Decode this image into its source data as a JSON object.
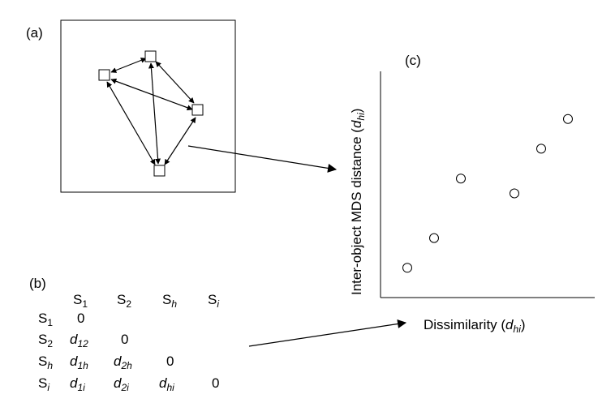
{
  "panel_a": {
    "label": "(a)"
  },
  "panel_b": {
    "label": "(b)",
    "headers": [
      {
        "base": "S",
        "sub": "1",
        "sub_italic": false
      },
      {
        "base": "S",
        "sub": "2",
        "sub_italic": false
      },
      {
        "base": "S",
        "sub": "h",
        "sub_italic": true
      },
      {
        "base": "S",
        "sub": "i",
        "sub_italic": true
      }
    ],
    "rows": [
      {
        "label": {
          "base": "S",
          "sub": "1",
          "sub_italic": false
        },
        "cells": [
          {
            "base": "0",
            "sub": "",
            "italic": false
          }
        ]
      },
      {
        "label": {
          "base": "S",
          "sub": "2",
          "sub_italic": false
        },
        "cells": [
          {
            "base": "d",
            "sub": "12",
            "italic": true
          },
          {
            "base": "0",
            "sub": "",
            "italic": false
          }
        ]
      },
      {
        "label": {
          "base": "S",
          "sub": "h",
          "sub_italic": true
        },
        "cells": [
          {
            "base": "d",
            "sub": "1h",
            "italic": true
          },
          {
            "base": "d",
            "sub": "2h",
            "italic": true
          },
          {
            "base": "0",
            "sub": "",
            "italic": false
          }
        ]
      },
      {
        "label": {
          "base": "S",
          "sub": "i",
          "sub_italic": true
        },
        "cells": [
          {
            "base": "d",
            "sub": "1i",
            "italic": true
          },
          {
            "base": "d",
            "sub": "2i",
            "italic": true
          },
          {
            "base": "d",
            "sub": "hi",
            "italic": true
          },
          {
            "base": "0",
            "sub": "",
            "italic": false
          }
        ]
      }
    ]
  },
  "panel_c": {
    "label": "(c)",
    "ylabel": {
      "main": "Inter-object MDS distance (",
      "sym": "d",
      "sub": "hi",
      "close": ")"
    },
    "xlabel": {
      "main": "Dissimilarity (",
      "sym": "d",
      "sub": "hi",
      "close": ")"
    }
  },
  "chart_data": {
    "type": "scatter",
    "x": [
      1.0,
      2.0,
      3.0,
      5.0,
      6.0,
      7.0
    ],
    "y": [
      1.0,
      2.0,
      4.0,
      3.5,
      5.0,
      6.0
    ],
    "xlim": [
      0,
      8
    ],
    "ylim": [
      0,
      7.6
    ],
    "xlabel": "Dissimilarity (d_hi)",
    "ylabel": "Inter-object MDS distance (d_hi)",
    "grid": false,
    "marker": "open-circle"
  }
}
